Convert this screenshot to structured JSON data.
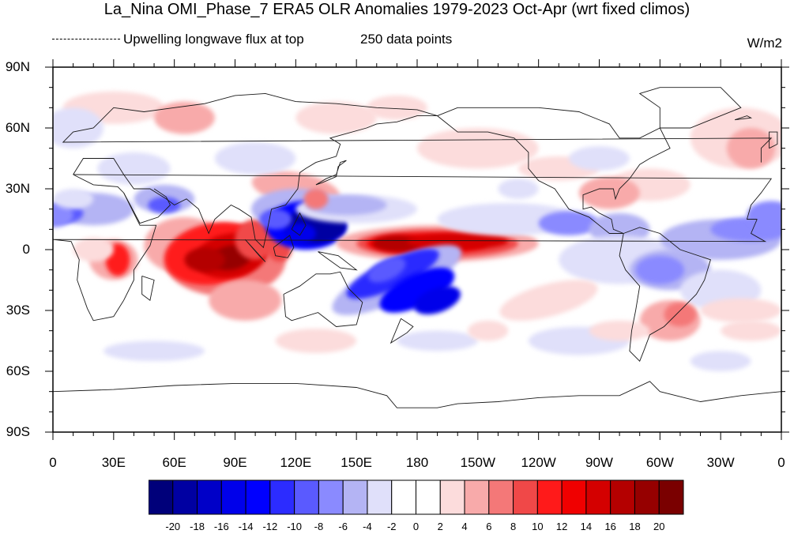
{
  "title": "La_Nina OMI_Phase_7 ERA5 OLR Anomalies 1979-2023 Oct-Apr (wrt fixed climos)",
  "subtitle_left": "Upwelling longwave flux at top",
  "subtitle_mid": "250 data points",
  "units": "W/m2",
  "lat_labels": [
    "90N",
    "60N",
    "30N",
    "0",
    "30S",
    "60S",
    "90S"
  ],
  "lon_labels": [
    "0",
    "30E",
    "60E",
    "90E",
    "120E",
    "150E",
    "180",
    "150W",
    "120W",
    "90W",
    "60W",
    "30W",
    "0"
  ],
  "colorbar": {
    "labels": [
      "-20",
      "-18",
      "-16",
      "-14",
      "-12",
      "-10",
      "-8",
      "-6",
      "-4",
      "-2",
      "0",
      "2",
      "4",
      "6",
      "8",
      "10",
      "12",
      "14",
      "16",
      "18",
      "20"
    ],
    "colors": [
      "#00007a",
      "#0000a2",
      "#0000c8",
      "#0000ea",
      "#0000ff",
      "#2c2cff",
      "#5a5aff",
      "#8a8aff",
      "#b4b4f4",
      "#e0e0fa",
      "#ffffff",
      "#ffffff",
      "#fcdcdc",
      "#f8aaaa",
      "#f47878",
      "#f04848",
      "#ff1a1a",
      "#f00000",
      "#d40000",
      "#b40000",
      "#960000",
      "#7a0000"
    ]
  },
  "map": {
    "projection": "cylindrical equidistant",
    "lon_range": [
      0,
      360
    ],
    "lat_range": [
      -90,
      90
    ],
    "anomaly_regions": [
      {
        "name": "Indian Ocean / Maritime Continent positive",
        "sign": "positive",
        "peak": 20
      },
      {
        "name": "Western Pacific negative",
        "sign": "negative",
        "peak": -20
      },
      {
        "name": "Central Pacific positive",
        "sign": "positive",
        "peak": 16
      },
      {
        "name": "SPCZ negative",
        "sign": "negative",
        "peak": -16
      },
      {
        "name": "Arabian Sea negative",
        "sign": "negative",
        "peak": -8
      },
      {
        "name": "East Africa positive",
        "sign": "positive",
        "peak": 12
      },
      {
        "name": "Amazon negative",
        "sign": "negative",
        "peak": -8
      },
      {
        "name": "South Atlantic positive",
        "sign": "positive",
        "peak": 8
      },
      {
        "name": "Tropical Atlantic negative",
        "sign": "negative",
        "peak": -8
      }
    ]
  }
}
